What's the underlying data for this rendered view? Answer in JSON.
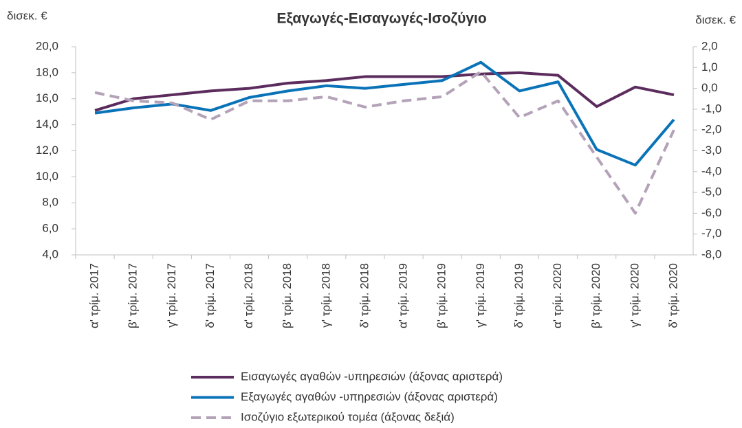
{
  "chart_data": {
    "type": "line",
    "title": "Εξαγωγές-Εισαγωγές-Ισοζύγιο",
    "ylabel": "δισεκ. €",
    "y2label": "δισεκ. €",
    "categories": [
      "α' τρίμ. 2017",
      "β' τρίμ. 2017",
      "γ' τρίμ. 2017",
      "δ' τρίμ. 2017",
      "α' τρίμ. 2018",
      "β' τρίμ. 2018",
      "γ' τρίμ. 2018",
      "δ' τρίμ. 2018",
      "α' τρίμ. 2019",
      "β' τρίμ. 2019",
      "γ' τρίμ. 2019",
      "δ' τρίμ. 2019",
      "α' τρίμ. 2020",
      "β' τρίμ. 2020",
      "γ' τρίμ. 2020",
      "δ' τρίμ. 2020"
    ],
    "series": [
      {
        "name": "Εισαγωγές αγαθών -υπηρεσιών (άξονας αριστερά)",
        "color": "#5b2c5d",
        "style": "solid",
        "values": [
          15.1,
          16.0,
          16.3,
          16.6,
          16.8,
          17.2,
          17.4,
          17.7,
          17.7,
          17.7,
          17.9,
          18.0,
          17.8,
          15.4,
          16.9,
          16.3
        ]
      },
      {
        "name": "Εξαγωγές αγαθών -υπηρεσιών (άξονας αριστερά)",
        "color": "#0a73b8",
        "style": "solid",
        "values": [
          14.9,
          15.3,
          15.6,
          15.1,
          16.1,
          16.6,
          17.0,
          16.8,
          17.1,
          17.4,
          18.8,
          16.6,
          17.3,
          12.1,
          10.9,
          14.4
        ]
      },
      {
        "name": "Ισοζύγιο εξωτερικού τομέα (άξονας δεξιά)",
        "color": "#b3a2b8",
        "style": "dashed",
        "axis": "y2",
        "values": [
          -0.2,
          -0.6,
          -0.7,
          -1.5,
          -0.6,
          -0.6,
          -0.4,
          -0.9,
          -0.6,
          -0.4,
          0.8,
          -1.4,
          -0.6,
          -3.3,
          -6.0,
          -2.0
        ]
      }
    ],
    "ylim": [
      4,
      20
    ],
    "yticks": [
      {
        "value": 4,
        "label": "4,0"
      },
      {
        "value": 6,
        "label": "6,0"
      },
      {
        "value": 8,
        "label": "8,0"
      },
      {
        "value": 10,
        "label": "10,0"
      },
      {
        "value": 12,
        "label": "12,0"
      },
      {
        "value": 14,
        "label": "14,0"
      },
      {
        "value": 16,
        "label": "16,0"
      },
      {
        "value": 18,
        "label": "18,0"
      },
      {
        "value": 20,
        "label": "20,0"
      }
    ],
    "y2lim": [
      -8,
      2
    ],
    "y2ticks": [
      {
        "value": -8,
        "label": "-8,0"
      },
      {
        "value": -7,
        "label": "-7,0"
      },
      {
        "value": -6,
        "label": "-6,0"
      },
      {
        "value": -5,
        "label": "-5,0"
      },
      {
        "value": -4,
        "label": "-4,0"
      },
      {
        "value": -3,
        "label": "-3,0"
      },
      {
        "value": -2,
        "label": "-2,0"
      },
      {
        "value": -1,
        "label": "-1,0"
      },
      {
        "value": 0,
        "label": "0,0"
      },
      {
        "value": 1,
        "label": "1,0"
      },
      {
        "value": 2,
        "label": "2,0"
      }
    ],
    "legend": "bottom"
  }
}
